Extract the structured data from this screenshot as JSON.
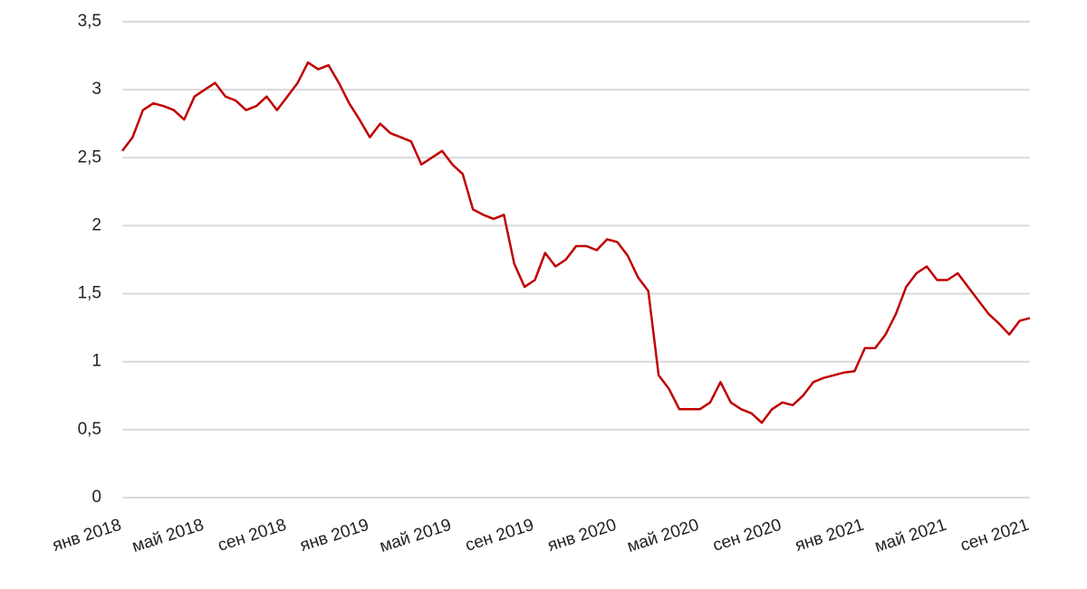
{
  "chart_data": {
    "type": "line",
    "color": "#c00000",
    "grid": true,
    "ylim": [
      0,
      3.5
    ],
    "yticks": [
      0,
      {
        "value": 0.5,
        "label": "0,5"
      },
      1,
      {
        "value": 1.5,
        "label": "1,5"
      },
      2,
      {
        "value": 2.5,
        "label": "2,5"
      },
      3,
      {
        "value": 3.5,
        "label": "3,5"
      }
    ],
    "categories": [
      "янв 2018",
      null,
      null,
      null,
      null,
      null,
      null,
      null,
      "май 2018",
      null,
      null,
      null,
      null,
      null,
      null,
      null,
      "сен 2018",
      null,
      null,
      null,
      null,
      null,
      null,
      null,
      "янв 2019",
      null,
      null,
      null,
      null,
      null,
      null,
      null,
      "май 2019",
      null,
      null,
      null,
      null,
      null,
      null,
      null,
      "сен 2019",
      null,
      null,
      null,
      null,
      null,
      null,
      null,
      "янв 2020",
      null,
      null,
      null,
      null,
      null,
      null,
      null,
      "май 2020",
      null,
      null,
      null,
      null,
      null,
      null,
      null,
      "сен 2020",
      null,
      null,
      null,
      null,
      null,
      null,
      null,
      "янв 2021",
      null,
      null,
      null,
      null,
      null,
      null,
      null,
      "май 2021",
      null,
      null,
      null,
      null,
      null,
      null,
      null,
      "сен 2021"
    ],
    "values": [
      2.55,
      2.65,
      2.85,
      2.9,
      2.88,
      2.85,
      2.78,
      2.95,
      3.0,
      3.05,
      2.95,
      2.92,
      2.85,
      2.88,
      2.95,
      2.85,
      2.95,
      3.05,
      3.2,
      3.15,
      3.18,
      3.05,
      2.9,
      2.78,
      2.65,
      2.75,
      2.68,
      2.65,
      2.62,
      2.45,
      2.5,
      2.55,
      2.45,
      2.38,
      2.12,
      2.08,
      2.05,
      2.08,
      1.72,
      1.55,
      1.6,
      1.8,
      1.7,
      1.75,
      1.85,
      1.85,
      1.82,
      1.9,
      1.88,
      1.78,
      1.62,
      1.52,
      0.9,
      0.8,
      0.65,
      0.65,
      0.65,
      0.7,
      0.85,
      0.7,
      0.65,
      0.62,
      0.55,
      0.65,
      0.7,
      0.68,
      0.75,
      0.85,
      0.88,
      0.9,
      0.92,
      0.93,
      1.1,
      1.1,
      1.2,
      1.35,
      1.55,
      1.65,
      1.7,
      1.6,
      1.6,
      1.65,
      1.55,
      1.45,
      1.35,
      1.28,
      1.2,
      1.3,
      1.32
    ]
  }
}
